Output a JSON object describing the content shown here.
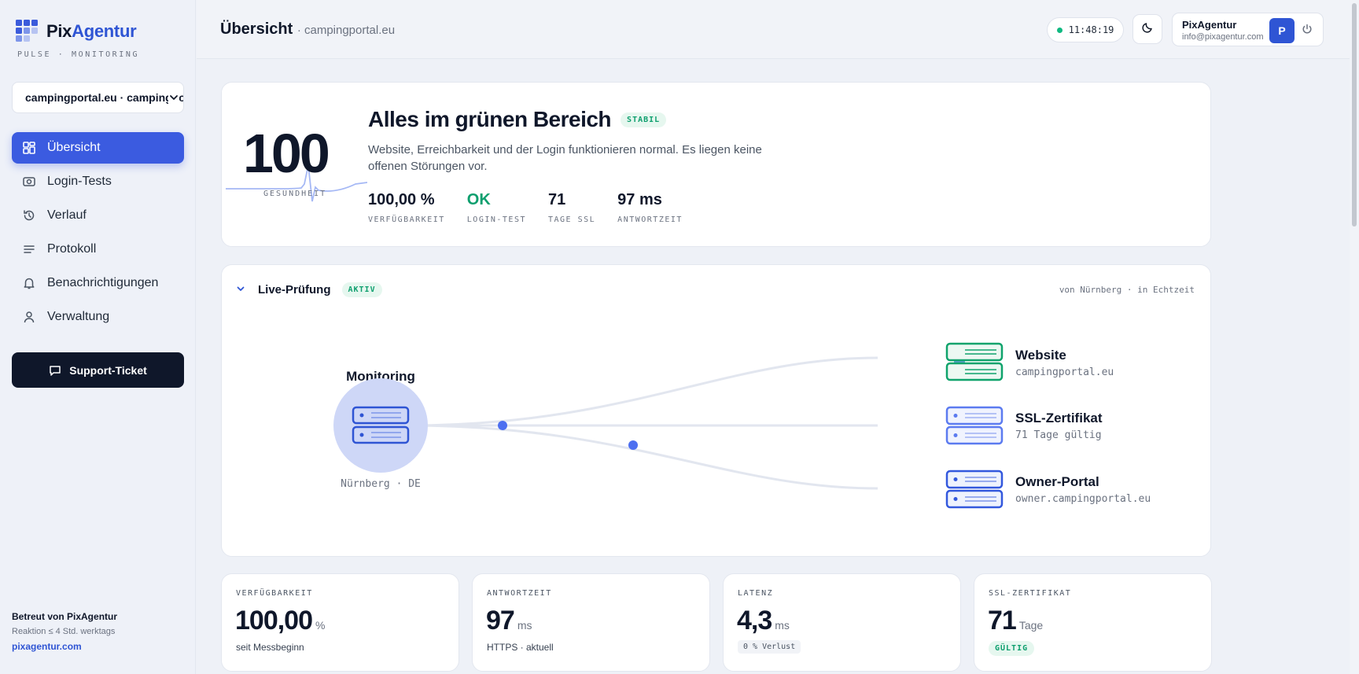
{
  "brand": {
    "name_a": "Pix",
    "name_b": "Agentur",
    "tagline": "PULSE · MONITORING"
  },
  "site_select": {
    "value": "campingportal.eu · campingportal.eu"
  },
  "nav": [
    {
      "label": "Übersicht",
      "icon": "dashboard-icon",
      "active": true
    },
    {
      "label": "Login-Tests",
      "icon": "camera-icon"
    },
    {
      "label": "Verlauf",
      "icon": "history-icon"
    },
    {
      "label": "Protokoll",
      "icon": "list-icon"
    },
    {
      "label": "Benachrichtigungen",
      "icon": "bell-icon"
    },
    {
      "label": "Verwaltung",
      "icon": "user-icon"
    }
  ],
  "support": {
    "label": "Support-Ticket"
  },
  "footer": {
    "line1": "Betreut von PixAgentur",
    "line2": "Reaktion ≤ 4 Std. werktags",
    "link": "pixagentur.com"
  },
  "header": {
    "title": "Übersicht",
    "subtitle": "· campingportal.eu",
    "clock": "11:48:19",
    "user_name": "PixAgentur",
    "user_email": "info@pixagentur.com",
    "avatar": "P"
  },
  "hero": {
    "score": "100",
    "score_label": "GESUNDHEIT",
    "title": "Alles im grünen Bereich",
    "badge": "STABIL",
    "description": "Website, Erreichbarkeit und der Login funktionieren normal. Es liegen keine offenen Störungen vor.",
    "stats": [
      {
        "value": "100,00 %",
        "label": "VERFÜGBARKEIT"
      },
      {
        "value": "OK",
        "label": "LOGIN-TEST"
      },
      {
        "value": "71",
        "label": "TAGE SSL"
      },
      {
        "value": "97 ms",
        "label": "ANTWORTZEIT"
      }
    ]
  },
  "live": {
    "title": "Live-Prüfung",
    "badge": "AKTIV",
    "source": "von Nürnberg · in Echtzeit",
    "origin": {
      "title": "Monitoring",
      "location": "Nürnberg · DE"
    },
    "targets": [
      {
        "name": "Website",
        "detail": "campingportal.eu",
        "color": "#10a36c"
      },
      {
        "name": "SSL-Zertifikat",
        "detail": "71 Tage gültig",
        "color": "#5c7bf0"
      },
      {
        "name": "Owner-Portal",
        "detail": "owner.campingportal.eu",
        "color": "#3358dd"
      }
    ]
  },
  "metrics": [
    {
      "label": "VERFÜGBARKEIT",
      "value": "100,00",
      "unit": "%",
      "sub": "seit Messbeginn"
    },
    {
      "label": "ANTWORTZEIT",
      "value": "97",
      "unit": "ms",
      "sub": "HTTPS · aktuell"
    },
    {
      "label": "LATENZ",
      "value": "4,3",
      "unit": "ms",
      "sub": "0 % Verlust"
    },
    {
      "label": "SSL-ZERTIFIKAT",
      "value": "71",
      "unit": "Tage",
      "sub": "GÜLTIG"
    }
  ]
}
